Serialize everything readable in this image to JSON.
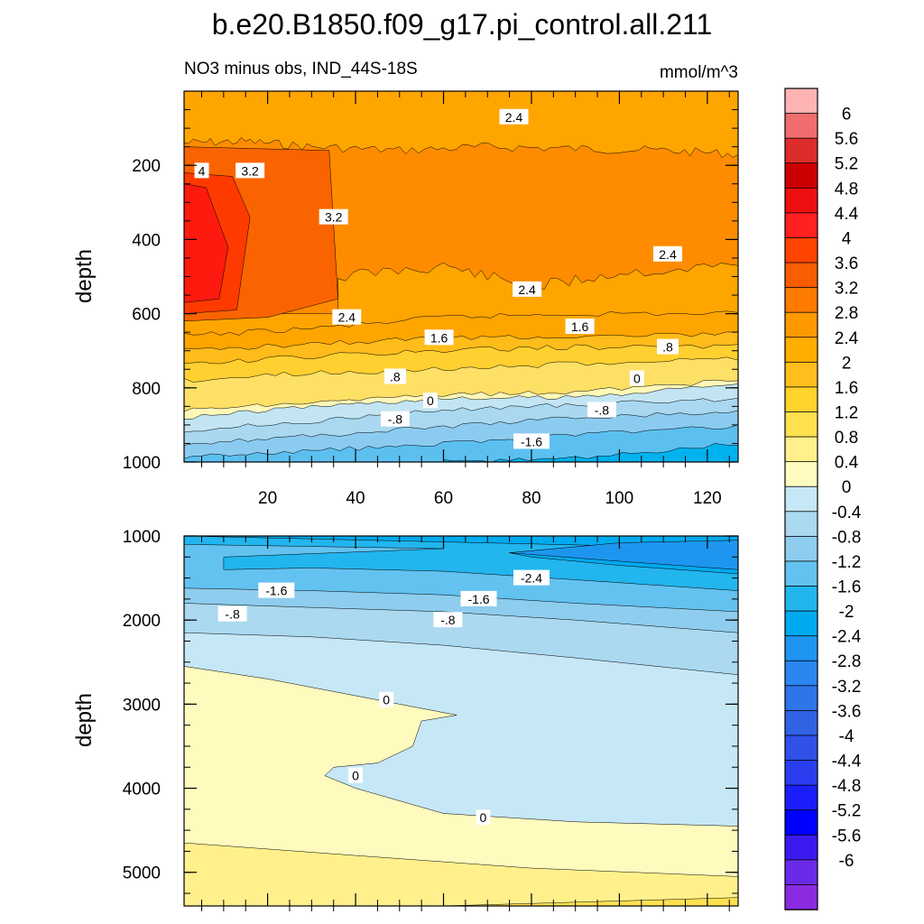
{
  "chart_data": {
    "type": "contour",
    "title": "b.e20.B1850.f09_g17.pi_control.all.211",
    "subtitle": "NO3 minus obs, IND_44S-18S",
    "units": "mmol/m^3",
    "x": {
      "range": [
        1,
        127
      ],
      "ticks": [
        20,
        40,
        60,
        80,
        100,
        120
      ],
      "tick_labels": [
        "20",
        "40",
        "60",
        "80",
        "100",
        "120"
      ]
    },
    "panels": [
      {
        "name": "upper",
        "ylabel": "depth",
        "ylim": [
          0,
          1000
        ],
        "yticks": [
          200,
          400,
          600,
          800,
          1000
        ],
        "ytick_labels": [
          "200",
          "400",
          "600",
          "800",
          "1000"
        ],
        "layers": [
          {
            "color": "#fff8b8",
            "top": [
              [
                1,
                860
              ],
              [
                30,
                840
              ],
              [
                60,
                820
              ],
              [
                90,
                810
              ],
              [
                127,
                780
              ]
            ]
          },
          {
            "color": "#c3e5f3",
            "top": [
              [
                1,
                880
              ],
              [
                30,
                850
              ],
              [
                60,
                830
              ],
              [
                90,
                825
              ],
              [
                127,
                790
              ]
            ]
          },
          {
            "color": "#a9d8f0",
            "top": [
              [
                1,
                915
              ],
              [
                30,
                890
              ],
              [
                60,
                860
              ],
              [
                90,
                845
              ],
              [
                127,
                830
              ]
            ]
          },
          {
            "color": "#8ccbf0",
            "top": [
              [
                1,
                950
              ],
              [
                30,
                930
              ],
              [
                60,
                905
              ],
              [
                90,
                880
              ],
              [
                127,
                865
              ]
            ]
          },
          {
            "color": "#5bc0f0",
            "top": [
              [
                1,
                985
              ],
              [
                30,
                970
              ],
              [
                60,
                950
              ],
              [
                90,
                925
              ],
              [
                127,
                905
              ]
            ]
          },
          {
            "color": "#00b2ee",
            "top": [
              [
                60,
                1000
              ],
              [
                90,
                990
              ],
              [
                127,
                950
              ]
            ]
          }
        ],
        "warm_layers": [
          {
            "color": "#ffe066",
            "top": [
              [
                1,
                780
              ],
              [
                30,
                760
              ],
              [
                60,
                750
              ],
              [
                90,
                735
              ],
              [
                127,
                720
              ]
            ]
          },
          {
            "color": "#ffd030",
            "top": [
              [
                1,
                740
              ],
              [
                30,
                715
              ],
              [
                60,
                700
              ],
              [
                90,
                690
              ],
              [
                127,
                690
              ]
            ]
          },
          {
            "color": "#ffbc1a",
            "top": [
              [
                1,
                700
              ],
              [
                30,
                680
              ],
              [
                60,
                665
              ],
              [
                90,
                660
              ],
              [
                127,
                655
              ]
            ]
          },
          {
            "color": "#ffa500",
            "top": [
              [
                1,
                660
              ],
              [
                30,
                640
              ],
              [
                60,
                610
              ],
              [
                90,
                600
              ],
              [
                127,
                600
              ]
            ]
          },
          {
            "color": "#ff8c00",
            "top": [
              [
                1,
                140
              ],
              [
                30,
                130
              ],
              [
                60,
                120
              ],
              [
                90,
                120
              ],
              [
                127,
                120
              ]
            ]
          },
          {
            "color": "#fa7000",
            "top": [
              [
                1,
                130
              ],
              [
                30,
                120
              ],
              [
                60,
                110
              ],
              [
                90,
                110
              ],
              [
                127,
                110
              ]
            ]
          }
        ],
        "labels": [
          {
            "text": "2.4",
            "x": 76,
            "y": 70
          },
          {
            "text": "4",
            "x": 5,
            "y": 215
          },
          {
            "text": "3.2",
            "x": 16,
            "y": 215
          },
          {
            "text": "3.2",
            "x": 35,
            "y": 340
          },
          {
            "text": "2.4",
            "x": 111,
            "y": 440
          },
          {
            "text": "2.4",
            "x": 79,
            "y": 535
          },
          {
            "text": "2.4",
            "x": 38,
            "y": 610
          },
          {
            "text": "1.6",
            "x": 59,
            "y": 665
          },
          {
            "text": "1.6",
            "x": 91,
            "y": 635
          },
          {
            "text": ".8",
            "x": 111,
            "y": 690
          },
          {
            "text": ".8",
            "x": 49,
            "y": 770
          },
          {
            "text": "0",
            "x": 104,
            "y": 775
          },
          {
            "text": "0",
            "x": 57,
            "y": 835
          },
          {
            "text": "-.8",
            "x": 96,
            "y": 860
          },
          {
            "text": "-.8",
            "x": 49,
            "y": 885
          },
          {
            "text": "-1.6",
            "x": 80,
            "y": 945
          }
        ]
      },
      {
        "name": "lower",
        "ylabel": "depth",
        "ylim": [
          1000,
          5400
        ],
        "yticks": [
          1000,
          2000,
          3000,
          4000,
          5000
        ],
        "ytick_labels": [
          "1000",
          "2000",
          "3000",
          "4000",
          "5000"
        ],
        "labels": [
          {
            "text": "-2.4",
            "x": 80,
            "y": 1500
          },
          {
            "text": "-1.6",
            "x": 22,
            "y": 1650
          },
          {
            "text": "-1.6",
            "x": 68,
            "y": 1750
          },
          {
            "text": "-.8",
            "x": 12,
            "y": 1930
          },
          {
            "text": "-.8",
            "x": 61,
            "y": 2000
          },
          {
            "text": "0",
            "x": 47,
            "y": 2950
          },
          {
            "text": "0",
            "x": 40,
            "y": 3850
          },
          {
            "text": "0",
            "x": 69,
            "y": 4350
          }
        ]
      }
    ],
    "colorbar": {
      "colors": [
        "#ffb3b3",
        "#f06d6d",
        "#dd2c2c",
        "#cc0000",
        "#ee1010",
        "#ff2020",
        "#ff4400",
        "#fa5c00",
        "#ff7a00",
        "#ff9900",
        "#ffae00",
        "#ffbe1c",
        "#ffd22c",
        "#ffe150",
        "#fff08c",
        "#fffabe",
        "#c6e7f5",
        "#aad9f0",
        "#8ecdee",
        "#63c2f0",
        "#22b5ee",
        "#00aaee",
        "#1e96f0",
        "#2a86f0",
        "#2e74ea",
        "#3063e4",
        "#3050e8",
        "#2a3ef0",
        "#1a1ef8",
        "#0000ff",
        "#3a1aee",
        "#6a2ae8",
        "#8a2be2"
      ],
      "labels": [
        "6",
        "5.6",
        "5.2",
        "4.8",
        "4.4",
        "4",
        "3.6",
        "3.2",
        "2.8",
        "2.4",
        "2",
        "1.6",
        "1.2",
        "0.8",
        "0.4",
        "0",
        "-0.4",
        "-0.8",
        "-1.2",
        "-1.6",
        "-2",
        "-2.4",
        "-2.8",
        "-3.2",
        "-3.6",
        "-4",
        "-4.4",
        "-4.8",
        "-5.2",
        "-5.6",
        "-6"
      ]
    }
  }
}
